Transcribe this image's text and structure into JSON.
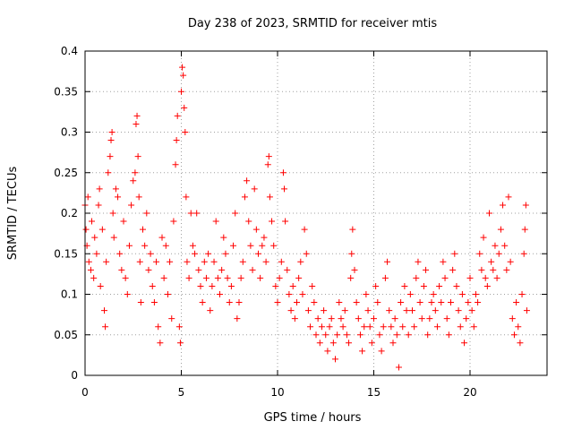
{
  "chart_data": {
    "type": "scatter",
    "title": "Day 238 of 2023, SRMTID for receiver mtis",
    "xlabel": "GPS time / hours",
    "ylabel": "SRMTID / TECUs",
    "xlim": [
      0,
      24
    ],
    "ylim": [
      0,
      0.4
    ],
    "xticks": [
      0,
      5,
      10,
      15,
      20
    ],
    "xtick_labels": [
      "0",
      "5",
      "10",
      "15",
      "20"
    ],
    "yticks": [
      0,
      0.05,
      0.1,
      0.15,
      0.2,
      0.25,
      0.3,
      0.35,
      0.4
    ],
    "ytick_labels": [
      "0",
      "0.05",
      "0.1",
      "0.15",
      "0.2",
      "0.25",
      "0.3",
      "0.35",
      "0.4"
    ],
    "grid": true,
    "marker": "+",
    "marker_color": "#ff0000",
    "series": [
      {
        "name": "mtis",
        "points": [
          [
            0.0,
            0.21
          ],
          [
            0.05,
            0.18
          ],
          [
            0.1,
            0.16
          ],
          [
            0.15,
            0.22
          ],
          [
            0.2,
            0.14
          ],
          [
            0.3,
            0.13
          ],
          [
            0.35,
            0.19
          ],
          [
            0.45,
            0.12
          ],
          [
            0.5,
            0.17
          ],
          [
            0.6,
            0.15
          ],
          [
            0.7,
            0.21
          ],
          [
            0.75,
            0.23
          ],
          [
            0.8,
            0.11
          ],
          [
            0.9,
            0.18
          ],
          [
            1.0,
            0.08
          ],
          [
            1.05,
            0.06
          ],
          [
            1.1,
            0.14
          ],
          [
            1.2,
            0.25
          ],
          [
            1.3,
            0.27
          ],
          [
            1.35,
            0.29
          ],
          [
            1.4,
            0.3
          ],
          [
            1.45,
            0.2
          ],
          [
            1.5,
            0.17
          ],
          [
            1.6,
            0.23
          ],
          [
            1.7,
            0.22
          ],
          [
            1.8,
            0.15
          ],
          [
            1.9,
            0.13
          ],
          [
            2.0,
            0.19
          ],
          [
            2.1,
            0.12
          ],
          [
            2.2,
            0.1
          ],
          [
            2.3,
            0.16
          ],
          [
            2.4,
            0.21
          ],
          [
            2.5,
            0.24
          ],
          [
            2.6,
            0.25
          ],
          [
            2.65,
            0.31
          ],
          [
            2.7,
            0.32
          ],
          [
            2.75,
            0.27
          ],
          [
            2.8,
            0.22
          ],
          [
            2.85,
            0.14
          ],
          [
            2.9,
            0.09
          ],
          [
            3.0,
            0.18
          ],
          [
            3.1,
            0.16
          ],
          [
            3.2,
            0.2
          ],
          [
            3.3,
            0.13
          ],
          [
            3.4,
            0.15
          ],
          [
            3.5,
            0.11
          ],
          [
            3.6,
            0.09
          ],
          [
            3.7,
            0.14
          ],
          [
            3.8,
            0.06
          ],
          [
            3.9,
            0.04
          ],
          [
            4.0,
            0.17
          ],
          [
            4.1,
            0.12
          ],
          [
            4.2,
            0.16
          ],
          [
            4.3,
            0.1
          ],
          [
            4.4,
            0.14
          ],
          [
            4.5,
            0.07
          ],
          [
            4.6,
            0.19
          ],
          [
            4.7,
            0.26
          ],
          [
            4.75,
            0.29
          ],
          [
            4.8,
            0.32
          ],
          [
            4.9,
            0.06
          ],
          [
            4.95,
            0.04
          ],
          [
            5.0,
            0.35
          ],
          [
            5.05,
            0.38
          ],
          [
            5.1,
            0.37
          ],
          [
            5.15,
            0.33
          ],
          [
            5.2,
            0.3
          ],
          [
            5.25,
            0.22
          ],
          [
            5.3,
            0.14
          ],
          [
            5.4,
            0.12
          ],
          [
            5.5,
            0.2
          ],
          [
            5.6,
            0.16
          ],
          [
            5.7,
            0.15
          ],
          [
            5.8,
            0.2
          ],
          [
            5.9,
            0.13
          ],
          [
            6.0,
            0.11
          ],
          [
            6.1,
            0.09
          ],
          [
            6.2,
            0.14
          ],
          [
            6.3,
            0.12
          ],
          [
            6.4,
            0.15
          ],
          [
            6.5,
            0.08
          ],
          [
            6.6,
            0.11
          ],
          [
            6.7,
            0.14
          ],
          [
            6.8,
            0.19
          ],
          [
            6.9,
            0.12
          ],
          [
            7.0,
            0.1
          ],
          [
            7.1,
            0.13
          ],
          [
            7.2,
            0.17
          ],
          [
            7.3,
            0.15
          ],
          [
            7.4,
            0.12
          ],
          [
            7.5,
            0.09
          ],
          [
            7.6,
            0.11
          ],
          [
            7.7,
            0.16
          ],
          [
            7.8,
            0.2
          ],
          [
            7.9,
            0.07
          ],
          [
            8.0,
            0.09
          ],
          [
            8.1,
            0.12
          ],
          [
            8.2,
            0.14
          ],
          [
            8.3,
            0.22
          ],
          [
            8.4,
            0.24
          ],
          [
            8.5,
            0.19
          ],
          [
            8.6,
            0.16
          ],
          [
            8.7,
            0.13
          ],
          [
            8.8,
            0.23
          ],
          [
            8.9,
            0.18
          ],
          [
            9.0,
            0.15
          ],
          [
            9.1,
            0.12
          ],
          [
            9.2,
            0.16
          ],
          [
            9.3,
            0.17
          ],
          [
            9.4,
            0.14
          ],
          [
            9.5,
            0.26
          ],
          [
            9.55,
            0.27
          ],
          [
            9.6,
            0.22
          ],
          [
            9.7,
            0.19
          ],
          [
            9.8,
            0.16
          ],
          [
            9.9,
            0.11
          ],
          [
            10.0,
            0.09
          ],
          [
            10.1,
            0.12
          ],
          [
            10.2,
            0.14
          ],
          [
            10.3,
            0.25
          ],
          [
            10.35,
            0.23
          ],
          [
            10.4,
            0.19
          ],
          [
            10.5,
            0.13
          ],
          [
            10.6,
            0.1
          ],
          [
            10.7,
            0.08
          ],
          [
            10.8,
            0.11
          ],
          [
            10.9,
            0.07
          ],
          [
            11.0,
            0.09
          ],
          [
            11.1,
            0.12
          ],
          [
            11.2,
            0.14
          ],
          [
            11.3,
            0.1
          ],
          [
            11.4,
            0.18
          ],
          [
            11.5,
            0.15
          ],
          [
            11.6,
            0.08
          ],
          [
            11.7,
            0.06
          ],
          [
            11.8,
            0.11
          ],
          [
            11.9,
            0.09
          ],
          [
            12.0,
            0.05
          ],
          [
            12.1,
            0.07
          ],
          [
            12.2,
            0.04
          ],
          [
            12.3,
            0.06
          ],
          [
            12.4,
            0.08
          ],
          [
            12.5,
            0.05
          ],
          [
            12.6,
            0.03
          ],
          [
            12.7,
            0.06
          ],
          [
            12.8,
            0.07
          ],
          [
            12.9,
            0.04
          ],
          [
            13.0,
            0.02
          ],
          [
            13.1,
            0.05
          ],
          [
            13.2,
            0.09
          ],
          [
            13.3,
            0.07
          ],
          [
            13.4,
            0.06
          ],
          [
            13.5,
            0.08
          ],
          [
            13.6,
            0.05
          ],
          [
            13.7,
            0.04
          ],
          [
            13.8,
            0.12
          ],
          [
            13.85,
            0.15
          ],
          [
            13.9,
            0.18
          ],
          [
            14.0,
            0.13
          ],
          [
            14.1,
            0.09
          ],
          [
            14.2,
            0.07
          ],
          [
            14.3,
            0.05
          ],
          [
            14.4,
            0.03
          ],
          [
            14.5,
            0.06
          ],
          [
            14.6,
            0.1
          ],
          [
            14.7,
            0.08
          ],
          [
            14.8,
            0.06
          ],
          [
            14.9,
            0.04
          ],
          [
            15.0,
            0.07
          ],
          [
            15.1,
            0.11
          ],
          [
            15.2,
            0.09
          ],
          [
            15.3,
            0.05
          ],
          [
            15.4,
            0.03
          ],
          [
            15.5,
            0.06
          ],
          [
            15.6,
            0.12
          ],
          [
            15.7,
            0.14
          ],
          [
            15.8,
            0.08
          ],
          [
            15.9,
            0.06
          ],
          [
            16.0,
            0.04
          ],
          [
            16.1,
            0.07
          ],
          [
            16.2,
            0.05
          ],
          [
            16.3,
            0.01
          ],
          [
            16.4,
            0.09
          ],
          [
            16.5,
            0.06
          ],
          [
            16.6,
            0.11
          ],
          [
            16.7,
            0.08
          ],
          [
            16.8,
            0.05
          ],
          [
            16.9,
            0.1
          ],
          [
            17.0,
            0.08
          ],
          [
            17.1,
            0.06
          ],
          [
            17.2,
            0.12
          ],
          [
            17.3,
            0.14
          ],
          [
            17.4,
            0.09
          ],
          [
            17.5,
            0.07
          ],
          [
            17.6,
            0.11
          ],
          [
            17.7,
            0.13
          ],
          [
            17.8,
            0.05
          ],
          [
            17.9,
            0.07
          ],
          [
            18.0,
            0.09
          ],
          [
            18.1,
            0.1
          ],
          [
            18.2,
            0.08
          ],
          [
            18.3,
            0.06
          ],
          [
            18.4,
            0.11
          ],
          [
            18.5,
            0.09
          ],
          [
            18.6,
            0.14
          ],
          [
            18.7,
            0.12
          ],
          [
            18.8,
            0.07
          ],
          [
            18.9,
            0.05
          ],
          [
            19.0,
            0.09
          ],
          [
            19.1,
            0.13
          ],
          [
            19.2,
            0.15
          ],
          [
            19.3,
            0.11
          ],
          [
            19.4,
            0.08
          ],
          [
            19.5,
            0.06
          ],
          [
            19.6,
            0.1
          ],
          [
            19.7,
            0.04
          ],
          [
            19.8,
            0.07
          ],
          [
            19.9,
            0.09
          ],
          [
            20.0,
            0.12
          ],
          [
            20.1,
            0.08
          ],
          [
            20.2,
            0.06
          ],
          [
            20.3,
            0.1
          ],
          [
            20.4,
            0.09
          ],
          [
            20.5,
            0.15
          ],
          [
            20.6,
            0.13
          ],
          [
            20.7,
            0.17
          ],
          [
            20.8,
            0.12
          ],
          [
            20.9,
            0.11
          ],
          [
            21.0,
            0.2
          ],
          [
            21.1,
            0.14
          ],
          [
            21.2,
            0.13
          ],
          [
            21.3,
            0.16
          ],
          [
            21.4,
            0.12
          ],
          [
            21.5,
            0.15
          ],
          [
            21.6,
            0.18
          ],
          [
            21.7,
            0.21
          ],
          [
            21.8,
            0.16
          ],
          [
            21.9,
            0.13
          ],
          [
            22.0,
            0.22
          ],
          [
            22.1,
            0.14
          ],
          [
            22.2,
            0.07
          ],
          [
            22.3,
            0.05
          ],
          [
            22.4,
            0.09
          ],
          [
            22.5,
            0.06
          ],
          [
            22.6,
            0.04
          ],
          [
            22.7,
            0.1
          ],
          [
            22.8,
            0.15
          ],
          [
            22.85,
            0.18
          ],
          [
            22.9,
            0.21
          ],
          [
            22.95,
            0.08
          ]
        ]
      }
    ]
  }
}
